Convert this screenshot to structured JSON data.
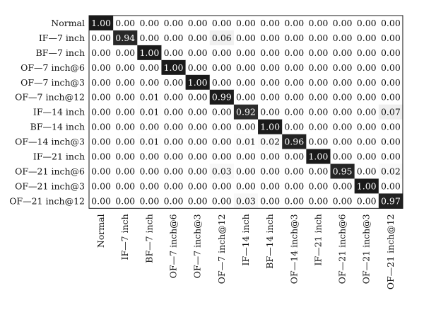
{
  "chart_data": {
    "type": "heatmap",
    "title": "",
    "xlabel": "",
    "ylabel": "",
    "row_labels": [
      "Normal",
      "IF—7 inch",
      "BF—7 inch",
      "OF—7 inch@6",
      "OF—7 inch@3",
      "OF—7 inch@12",
      "IF—14 inch",
      "BF—14 inch",
      "OF—14 inch@3",
      "IF—21 inch",
      "OF—21 inch@6",
      "OF—21 inch@3",
      "OF—21 inch@12"
    ],
    "col_labels": [
      "Normal",
      "IF—7 inch",
      "BF—7 inch",
      "OF—7 inch@6",
      "OF—7 inch@3",
      "OF—7 inch@12",
      "IF—14 inch",
      "BF—14 inch",
      "OF—14 inch@3",
      "IF—21 inch",
      "OF—21 inch@6",
      "OF—21 inch@3",
      "OF—21 inch@12"
    ],
    "values": [
      [
        1.0,
        0.0,
        0.0,
        0.0,
        0.0,
        0.0,
        0.0,
        0.0,
        0.0,
        0.0,
        0.0,
        0.0,
        0.0
      ],
      [
        0.0,
        0.94,
        0.0,
        0.0,
        0.0,
        0.06,
        0.0,
        0.0,
        0.0,
        0.0,
        0.0,
        0.0,
        0.0
      ],
      [
        0.0,
        0.0,
        1.0,
        0.0,
        0.0,
        0.0,
        0.0,
        0.0,
        0.0,
        0.0,
        0.0,
        0.0,
        0.0
      ],
      [
        0.0,
        0.0,
        0.0,
        1.0,
        0.0,
        0.0,
        0.0,
        0.0,
        0.0,
        0.0,
        0.0,
        0.0,
        0.0
      ],
      [
        0.0,
        0.0,
        0.0,
        0.0,
        1.0,
        0.0,
        0.0,
        0.0,
        0.0,
        0.0,
        0.0,
        0.0,
        0.0
      ],
      [
        0.0,
        0.0,
        0.01,
        0.0,
        0.0,
        0.99,
        0.0,
        0.0,
        0.0,
        0.0,
        0.0,
        0.0,
        0.0
      ],
      [
        0.0,
        0.0,
        0.01,
        0.0,
        0.0,
        0.0,
        0.92,
        0.0,
        0.0,
        0.0,
        0.0,
        0.0,
        0.07
      ],
      [
        0.0,
        0.0,
        0.0,
        0.0,
        0.0,
        0.0,
        0.0,
        1.0,
        0.0,
        0.0,
        0.0,
        0.0,
        0.0
      ],
      [
        0.0,
        0.0,
        0.01,
        0.0,
        0.0,
        0.0,
        0.01,
        0.02,
        0.96,
        0.0,
        0.0,
        0.0,
        0.0
      ],
      [
        0.0,
        0.0,
        0.0,
        0.0,
        0.0,
        0.0,
        0.0,
        0.0,
        0.0,
        1.0,
        0.0,
        0.0,
        0.0
      ],
      [
        0.0,
        0.0,
        0.0,
        0.0,
        0.0,
        0.03,
        0.0,
        0.0,
        0.0,
        0.0,
        0.95,
        0.0,
        0.02
      ],
      [
        0.0,
        0.0,
        0.0,
        0.0,
        0.0,
        0.0,
        0.0,
        0.0,
        0.0,
        0.0,
        0.0,
        1.0,
        0.0
      ],
      [
        0.0,
        0.0,
        0.0,
        0.0,
        0.0,
        0.0,
        0.03,
        0.0,
        0.0,
        0.0,
        0.0,
        0.0,
        0.97
      ]
    ],
    "color_scale": {
      "low": "#ffffff",
      "high": "#1a1a1a"
    },
    "grid": false,
    "legend": "none"
  }
}
